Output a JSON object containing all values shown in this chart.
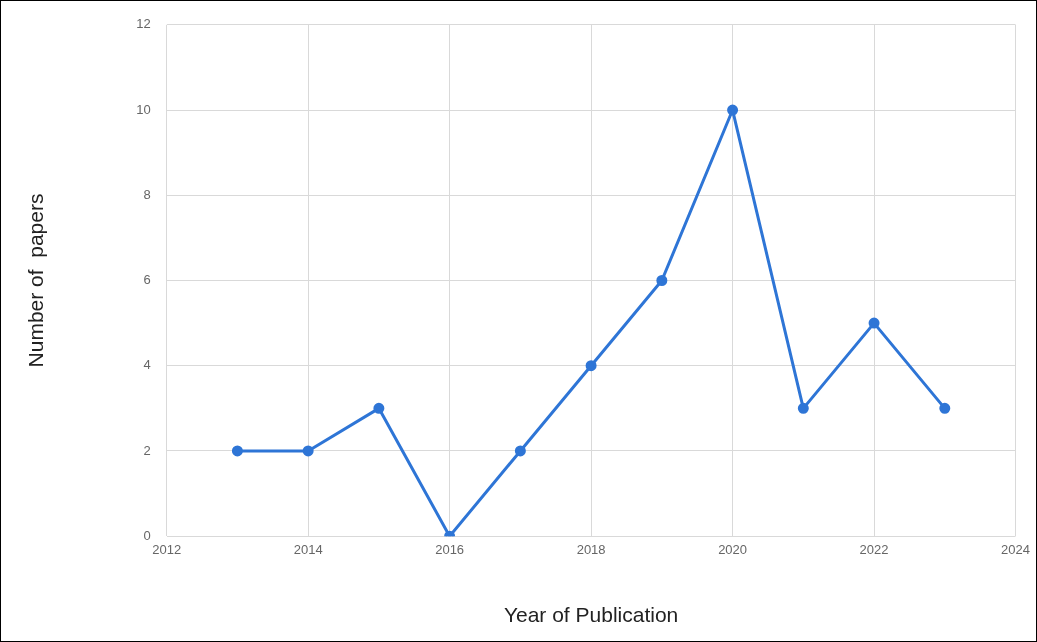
{
  "chart_data": {
    "type": "line",
    "xlabel": "Year of Publication",
    "ylabel": "Number of  papers",
    "x": [
      2013,
      2014,
      2015,
      2016,
      2017,
      2018,
      2019,
      2020,
      2021,
      2022,
      2023
    ],
    "series": [
      {
        "color": "#2e75d6",
        "values": [
          2,
          2,
          3,
          0,
          2,
          4,
          6,
          10,
          3,
          5,
          3
        ]
      }
    ],
    "xlim": [
      2012,
      2024
    ],
    "xticks": [
      2012,
      2014,
      2016,
      2018,
      2020,
      2022,
      2024
    ],
    "ylim": [
      0,
      12
    ],
    "yticks": [
      0,
      2,
      4,
      6,
      8,
      10,
      12
    ],
    "grid": true,
    "marker": "circle",
    "line_style": "solid",
    "legend": false
  }
}
